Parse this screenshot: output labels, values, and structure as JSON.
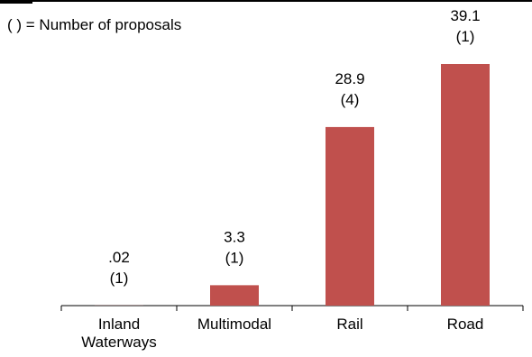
{
  "note": "( ) = Number of proposals",
  "colors": {
    "bar": "#c0504d",
    "axis": "#000000"
  },
  "chart_data": {
    "type": "bar",
    "categories": [
      "Inland Waterways",
      "Multimodal",
      "Rail",
      "Road"
    ],
    "category_lines": [
      [
        "Inland",
        "Waterways"
      ],
      [
        "Multimodal"
      ],
      [
        "Rail"
      ],
      [
        "Road"
      ]
    ],
    "values": [
      0.02,
      3.3,
      28.9,
      39.1
    ],
    "value_labels": [
      ".02",
      "3.3",
      "28.9",
      "39.1"
    ],
    "proposal_labels": [
      "(1)",
      "(1)",
      "(4)",
      "(1)"
    ],
    "proposals": [
      1,
      1,
      4,
      1
    ],
    "ylim": [
      0,
      39.1
    ],
    "grid": false,
    "legend": "none"
  }
}
